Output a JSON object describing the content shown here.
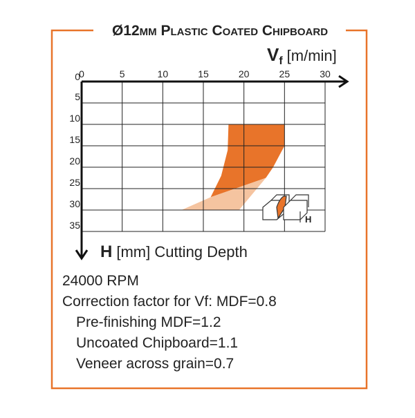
{
  "chart_data": {
    "type": "region",
    "title": "Ø12mm Plastic Coated Chipboard",
    "x_label": {
      "symbol": "V",
      "subscript": "f",
      "unit": "[m/min]"
    },
    "y_label": {
      "symbol": "H",
      "text": "[mm] Cutting Depth"
    },
    "xlim": [
      0,
      30
    ],
    "xticks": [
      0,
      5,
      10,
      15,
      20,
      25,
      30
    ],
    "ylim": [
      0,
      35
    ],
    "yticks": [
      0,
      5,
      10,
      15,
      20,
      25,
      30,
      35
    ],
    "grid": true,
    "series": [
      {
        "color": "#e8742a",
        "x": [
          18.1,
          25,
          25,
          23.6,
          22.7,
          15.9,
          17.2,
          18
        ],
        "y": [
          10,
          10,
          15,
          20,
          22.5,
          27,
          22,
          16
        ]
      },
      {
        "color": "#f5c4a0",
        "x": [
          22.7,
          19.4,
          12.3,
          15.9
        ],
        "y": [
          22.5,
          30,
          30,
          27
        ]
      }
    ],
    "icon_label": "H",
    "notes": [
      "24000 RPM",
      "Correction factor for Vf: MDF=0.8",
      "Pre-finishing MDF=1.2",
      "Uncoated Chipboard=1.1",
      "Veneer across grain=0.7"
    ]
  }
}
